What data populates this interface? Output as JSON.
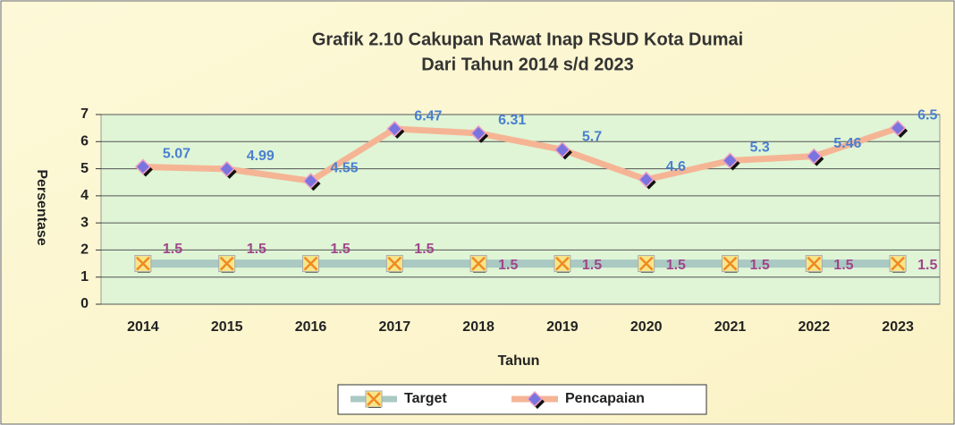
{
  "chart_data": {
    "type": "line",
    "title": "Grafik 2.10 Cakupan Rawat Inap RSUD Kota Dumai",
    "subtitle": "Dari Tahun 2014 s/d 2023",
    "x_label": "Tahun",
    "y_label": "Persentase",
    "categories": [
      "2014",
      "2015",
      "2016",
      "2017",
      "2018",
      "2019",
      "2020",
      "2021",
      "2022",
      "2023"
    ],
    "series": [
      {
        "name": "Target",
        "color": "#a9c9c2",
        "marker_color": "#f08a20",
        "label_color": "#a0468a",
        "values": [
          1.5,
          1.5,
          1.5,
          1.5,
          1.5,
          1.5,
          1.5,
          1.5,
          1.5,
          1.5
        ]
      },
      {
        "name": "Pencapaian",
        "color": "#f5b595",
        "marker_color": "#7a74e0",
        "label_color": "#4a7fd0",
        "values": [
          5.07,
          4.99,
          4.55,
          6.47,
          6.31,
          5.7,
          4.6,
          5.3,
          5.46,
          6.5
        ]
      }
    ],
    "ylim": [
      0,
      7
    ],
    "yticks": [
      0,
      1,
      2,
      3,
      4,
      5,
      6,
      7
    ],
    "grid": true,
    "legend": "bottom"
  }
}
